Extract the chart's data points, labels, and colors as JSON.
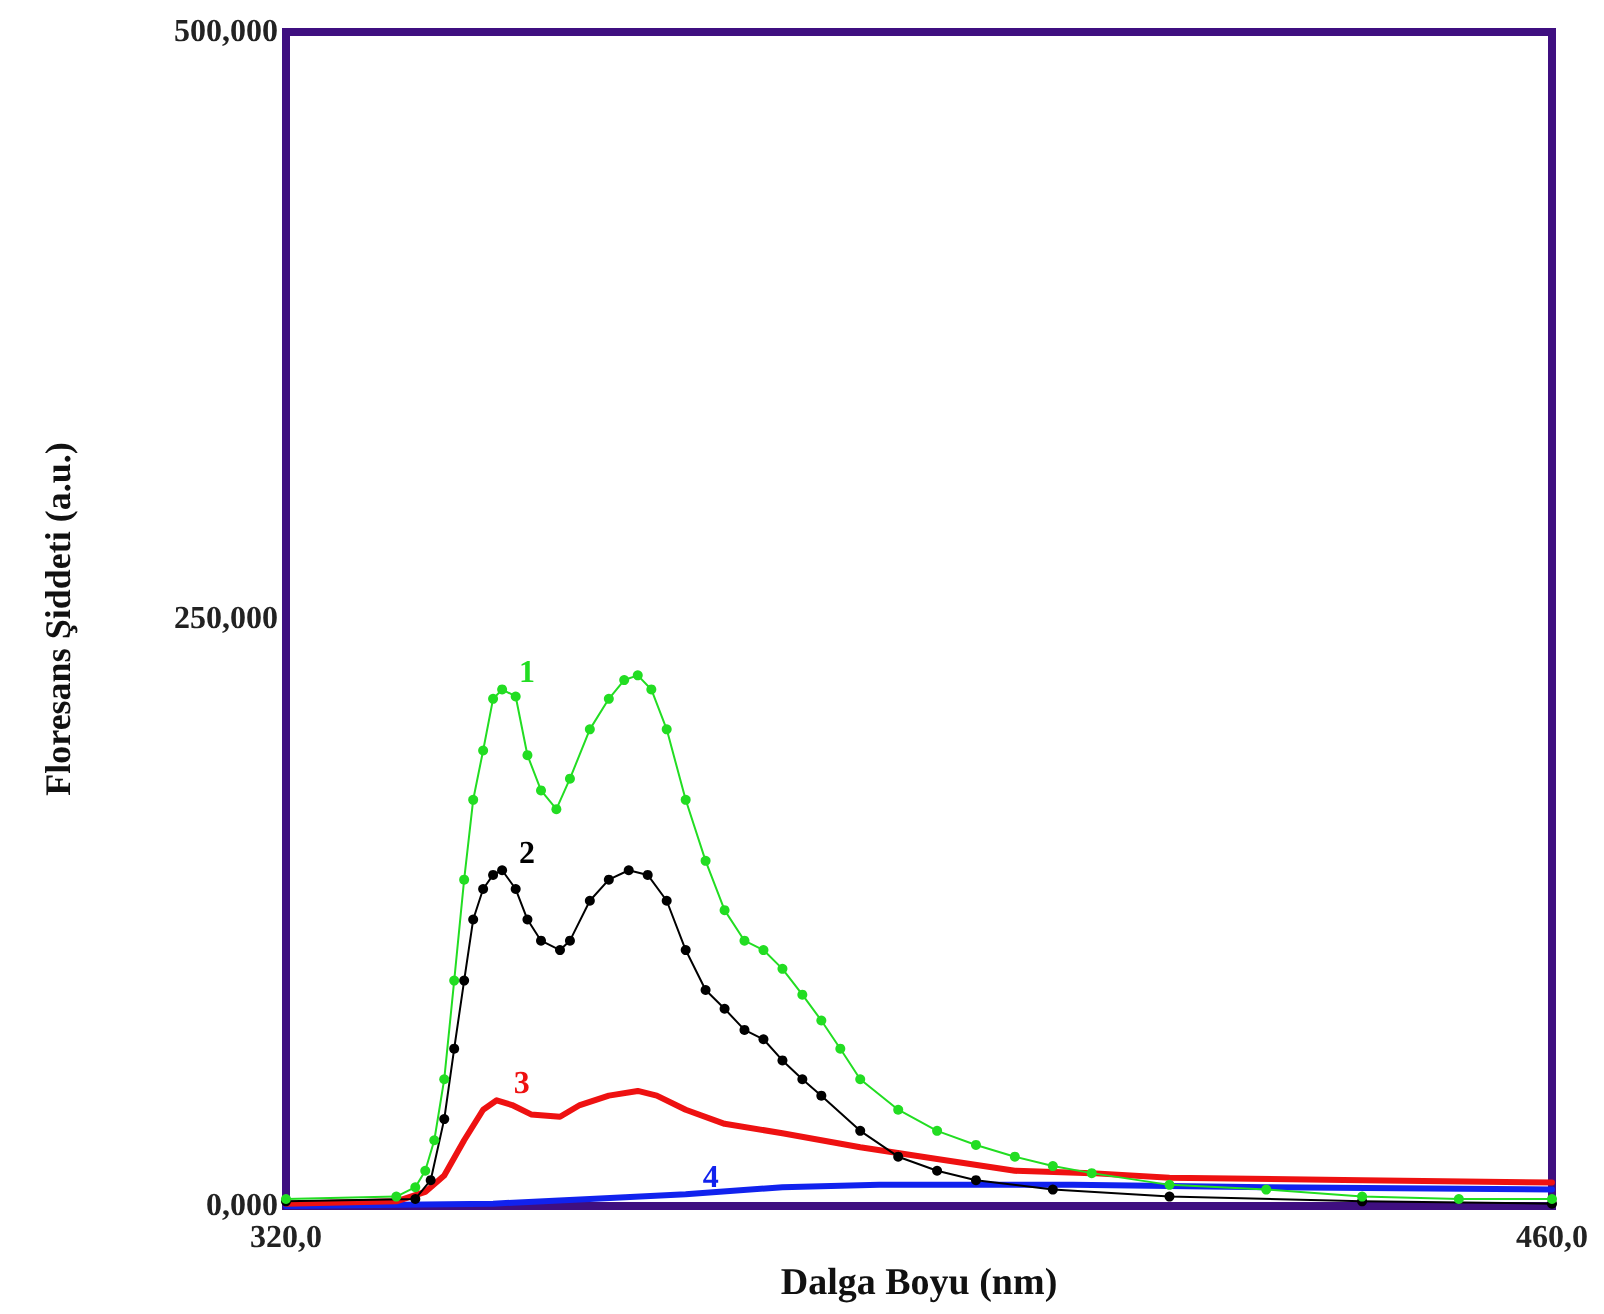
{
  "chart_data": {
    "type": "line",
    "xlabel": "Dalga Boyu (nm)",
    "ylabel": "Floresans Şiddeti (a.u.)",
    "xlim": [
      320,
      460
    ],
    "xticks": [
      {
        "value": 320,
        "label": "320,0"
      },
      {
        "value": 460,
        "label": "460,0"
      }
    ],
    "ylim": [
      0,
      500
    ],
    "yticks": [
      {
        "value": 0,
        "label": "0,000"
      },
      {
        "value": 250,
        "label": "250,000"
      },
      {
        "value": 500,
        "label": "500,000"
      }
    ],
    "grid": false,
    "line_style": "solid",
    "series": [
      {
        "name": "1",
        "color": "#22dd22",
        "marker": "circle",
        "x": [
          320,
          332.2,
          334.3,
          335.4,
          336.4,
          337.5,
          338.6,
          339.7,
          340.7,
          341.8,
          342.9,
          343.9,
          345.4,
          346.7,
          348.2,
          349.9,
          351.4,
          353.6,
          355.7,
          357.4,
          358.9,
          360.4,
          362.1,
          364.2,
          366.4,
          368.5,
          370.7,
          372.8,
          374.9,
          377.1,
          379.2,
          381.3,
          383.5,
          387.7,
          392,
          396.3,
          400.6,
          404.8,
          409.1,
          417.7,
          428.4,
          439,
          449.7,
          460
        ],
        "values": [
          3,
          4,
          8,
          15,
          28,
          54,
          96,
          139,
          173,
          194,
          216,
          220,
          217,
          192,
          177,
          169,
          182,
          203,
          216,
          224,
          226,
          220,
          203,
          173,
          147,
          126,
          113,
          109,
          101,
          90,
          79,
          67,
          54,
          41,
          32,
          26,
          21,
          17,
          14,
          9,
          7,
          4,
          3,
          3
        ]
      },
      {
        "name": "2",
        "color": "#000000",
        "marker": "circle",
        "x": [
          320,
          334.3,
          336,
          337.5,
          338.6,
          339.7,
          340.7,
          341.8,
          342.9,
          343.9,
          345.4,
          346.7,
          348.2,
          350.3,
          351.4,
          353.6,
          355.7,
          357.9,
          360,
          362.1,
          364.2,
          366.4,
          368.5,
          370.7,
          372.8,
          374.9,
          377.1,
          379.2,
          383.5,
          387.7,
          392,
          396.3,
          404.8,
          417.7,
          439,
          460
        ],
        "values": [
          2,
          3,
          11,
          37,
          67,
          96,
          122,
          135,
          141,
          143,
          135,
          122,
          113,
          109,
          113,
          130,
          139,
          143,
          141,
          130,
          109,
          92,
          84,
          75,
          71,
          62,
          54,
          47,
          32,
          21,
          15,
          11,
          7,
          4,
          2,
          1
        ]
      },
      {
        "name": "3",
        "color": "#ee1111",
        "marker": "none",
        "x": [
          320,
          332.2,
          335.4,
          337.5,
          339.7,
          341.8,
          343.3,
          345,
          347.1,
          350.3,
          352.5,
          355.7,
          358.9,
          361,
          364.2,
          368.5,
          374.9,
          383.5,
          392,
          400.6,
          409.1,
          417.7,
          439,
          460
        ],
        "values": [
          1,
          2,
          6,
          13,
          28,
          41,
          45,
          43,
          39,
          38,
          43,
          47,
          49,
          47,
          41,
          35,
          31,
          25,
          20,
          15,
          14,
          12,
          11,
          10
        ]
      },
      {
        "name": "4",
        "color": "#1122ee",
        "marker": "none",
        "x": [
          320,
          342.9,
          353.6,
          364.2,
          374.9,
          385.6,
          407,
          428.4,
          460
        ],
        "values": [
          0,
          1,
          3,
          5,
          8,
          9,
          9,
          8,
          7
        ]
      }
    ]
  }
}
